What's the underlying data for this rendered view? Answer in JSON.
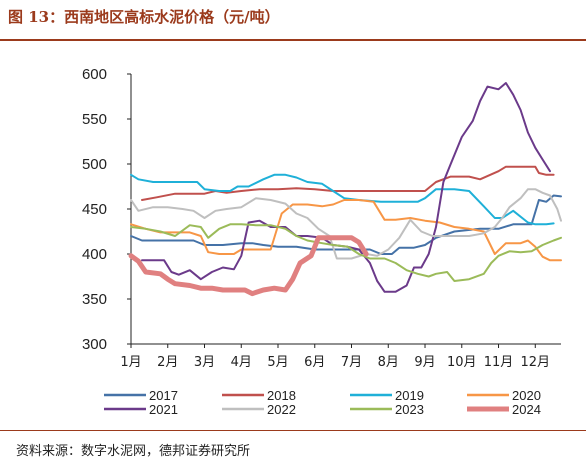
{
  "figure": {
    "title": "图 13：西南地区高标水泥价格（元/吨）",
    "source": "资料来源：数字水泥网，德邦证券研究所"
  },
  "chart_data": {
    "type": "line",
    "title": "",
    "xlabel": "",
    "ylabel": "",
    "ylim": [
      300,
      600
    ],
    "yticks": [
      300,
      350,
      400,
      450,
      500,
      550,
      600
    ],
    "categories": [
      "1月",
      "2月",
      "3月",
      "4月",
      "5月",
      "6月",
      "7月",
      "8月",
      "9月",
      "10月",
      "11月",
      "12月"
    ],
    "x_range": [
      1,
      12.7
    ],
    "grid": false,
    "legend_position": "bottom",
    "series": [
      {
        "name": "2017",
        "color": "#4572a7",
        "width": 2,
        "points": [
          [
            1,
            420
          ],
          [
            1.3,
            415
          ],
          [
            2.0,
            415
          ],
          [
            2.7,
            415
          ],
          [
            3.0,
            410
          ],
          [
            3.5,
            410
          ],
          [
            4.0,
            412
          ],
          [
            4.3,
            412
          ],
          [
            4.6,
            410
          ],
          [
            5.0,
            408
          ],
          [
            5.5,
            408
          ],
          [
            6.0,
            405
          ],
          [
            6.5,
            405
          ],
          [
            7.0,
            405
          ],
          [
            7.5,
            405
          ],
          [
            7.8,
            400
          ],
          [
            8.1,
            400
          ],
          [
            8.3,
            407
          ],
          [
            8.7,
            407
          ],
          [
            9.0,
            410
          ],
          [
            9.3,
            418
          ],
          [
            9.8,
            425
          ],
          [
            10.5,
            428
          ],
          [
            11.0,
            428
          ],
          [
            11.4,
            433
          ],
          [
            11.9,
            433
          ],
          [
            12.1,
            460
          ],
          [
            12.3,
            458
          ],
          [
            12.5,
            465
          ],
          [
            12.7,
            464
          ]
        ]
      },
      {
        "name": "2018",
        "color": "#c0504d",
        "width": 2,
        "points": [
          [
            1.3,
            460
          ],
          [
            1.7,
            463
          ],
          [
            2.2,
            467
          ],
          [
            2.7,
            467
          ],
          [
            3.0,
            467
          ],
          [
            3.3,
            470
          ],
          [
            3.6,
            468
          ],
          [
            4.0,
            470
          ],
          [
            4.5,
            472
          ],
          [
            5.0,
            472
          ],
          [
            5.5,
            473
          ],
          [
            6.0,
            472
          ],
          [
            6.5,
            470
          ],
          [
            7.0,
            470
          ],
          [
            7.5,
            470
          ],
          [
            8.0,
            470
          ],
          [
            8.5,
            470
          ],
          [
            9.0,
            470
          ],
          [
            9.3,
            480
          ],
          [
            9.7,
            486
          ],
          [
            10.2,
            486
          ],
          [
            10.5,
            483
          ],
          [
            11.0,
            492
          ],
          [
            11.2,
            497
          ],
          [
            11.6,
            497
          ],
          [
            12.0,
            497
          ],
          [
            12.1,
            490
          ],
          [
            12.3,
            488
          ],
          [
            12.5,
            488
          ]
        ]
      },
      {
        "name": "2019",
        "color": "#1fb0d8",
        "width": 2,
        "points": [
          [
            1,
            488
          ],
          [
            1.2,
            483
          ],
          [
            1.6,
            480
          ],
          [
            2.0,
            480
          ],
          [
            2.4,
            480
          ],
          [
            2.8,
            480
          ],
          [
            3.0,
            472
          ],
          [
            3.4,
            470
          ],
          [
            3.7,
            470
          ],
          [
            3.9,
            475
          ],
          [
            4.2,
            475
          ],
          [
            4.6,
            483
          ],
          [
            4.9,
            488
          ],
          [
            5.2,
            488
          ],
          [
            5.5,
            485
          ],
          [
            5.8,
            480
          ],
          [
            6.2,
            478
          ],
          [
            6.5,
            470
          ],
          [
            6.8,
            462
          ],
          [
            7.2,
            460
          ],
          [
            7.8,
            458
          ],
          [
            8.3,
            458
          ],
          [
            8.8,
            458
          ],
          [
            9.0,
            462
          ],
          [
            9.3,
            472
          ],
          [
            9.8,
            472
          ],
          [
            10.2,
            470
          ],
          [
            10.6,
            453
          ],
          [
            10.9,
            440
          ],
          [
            11.1,
            440
          ],
          [
            11.4,
            448
          ],
          [
            11.8,
            435
          ],
          [
            12.0,
            433
          ],
          [
            12.3,
            433
          ],
          [
            12.5,
            434
          ]
        ]
      },
      {
        "name": "2020",
        "color": "#f79646",
        "width": 2,
        "points": [
          [
            1,
            433
          ],
          [
            1.4,
            428
          ],
          [
            1.8,
            424
          ],
          [
            2.2,
            424
          ],
          [
            2.6,
            424
          ],
          [
            2.9,
            420
          ],
          [
            3.1,
            402
          ],
          [
            3.4,
            400
          ],
          [
            3.8,
            400
          ],
          [
            4.0,
            405
          ],
          [
            4.4,
            405
          ],
          [
            4.8,
            405
          ],
          [
            5.1,
            445
          ],
          [
            5.4,
            455
          ],
          [
            5.8,
            455
          ],
          [
            6.2,
            453
          ],
          [
            6.5,
            455
          ],
          [
            6.8,
            460
          ],
          [
            7.2,
            460
          ],
          [
            7.6,
            458
          ],
          [
            7.9,
            438
          ],
          [
            8.2,
            438
          ],
          [
            8.6,
            440
          ],
          [
            9.0,
            437
          ],
          [
            9.4,
            435
          ],
          [
            9.8,
            430
          ],
          [
            10.2,
            428
          ],
          [
            10.6,
            425
          ],
          [
            10.9,
            400
          ],
          [
            11.2,
            412
          ],
          [
            11.6,
            412
          ],
          [
            11.8,
            415
          ],
          [
            12.0,
            408
          ],
          [
            12.2,
            397
          ],
          [
            12.4,
            393
          ],
          [
            12.7,
            393
          ]
        ]
      },
      {
        "name": "2021",
        "color": "#6b3a8a",
        "width": 2,
        "points": [
          [
            1.3,
            393
          ],
          [
            1.6,
            393
          ],
          [
            1.9,
            393
          ],
          [
            2.1,
            380
          ],
          [
            2.3,
            377
          ],
          [
            2.6,
            382
          ],
          [
            2.9,
            372
          ],
          [
            3.2,
            380
          ],
          [
            3.5,
            385
          ],
          [
            3.8,
            383
          ],
          [
            4.0,
            398
          ],
          [
            4.2,
            435
          ],
          [
            4.5,
            437
          ],
          [
            4.8,
            430
          ],
          [
            5.2,
            430
          ],
          [
            5.5,
            420
          ],
          [
            5.8,
            420
          ],
          [
            6.2,
            418
          ],
          [
            6.5,
            410
          ],
          [
            6.9,
            408
          ],
          [
            7.2,
            405
          ],
          [
            7.5,
            390
          ],
          [
            7.7,
            370
          ],
          [
            7.9,
            358
          ],
          [
            8.2,
            358
          ],
          [
            8.5,
            365
          ],
          [
            8.7,
            385
          ],
          [
            8.9,
            385
          ],
          [
            9.1,
            400
          ],
          [
            9.3,
            430
          ],
          [
            9.5,
            480
          ],
          [
            9.7,
            500
          ],
          [
            10.0,
            530
          ],
          [
            10.3,
            548
          ],
          [
            10.5,
            570
          ],
          [
            10.7,
            586
          ],
          [
            11.0,
            583
          ],
          [
            11.2,
            590
          ],
          [
            11.4,
            577
          ],
          [
            11.6,
            560
          ],
          [
            11.8,
            535
          ],
          [
            12.0,
            518
          ],
          [
            12.2,
            505
          ],
          [
            12.4,
            492
          ]
        ]
      },
      {
        "name": "2022",
        "color": "#bfbfbf",
        "width": 2,
        "points": [
          [
            1,
            460
          ],
          [
            1.2,
            448
          ],
          [
            1.6,
            452
          ],
          [
            2.0,
            452
          ],
          [
            2.4,
            450
          ],
          [
            2.7,
            448
          ],
          [
            3.0,
            440
          ],
          [
            3.3,
            448
          ],
          [
            3.6,
            450
          ],
          [
            4.0,
            452
          ],
          [
            4.4,
            462
          ],
          [
            4.8,
            460
          ],
          [
            5.2,
            456
          ],
          [
            5.5,
            445
          ],
          [
            5.8,
            440
          ],
          [
            6.1,
            428
          ],
          [
            6.4,
            420
          ],
          [
            6.6,
            395
          ],
          [
            7.0,
            395
          ],
          [
            7.4,
            400
          ],
          [
            7.7,
            398
          ],
          [
            8.0,
            405
          ],
          [
            8.3,
            418
          ],
          [
            8.6,
            438
          ],
          [
            8.9,
            425
          ],
          [
            9.2,
            420
          ],
          [
            9.5,
            420
          ],
          [
            9.8,
            420
          ],
          [
            10.2,
            420
          ],
          [
            10.6,
            423
          ],
          [
            10.9,
            430
          ],
          [
            11.1,
            440
          ],
          [
            11.3,
            452
          ],
          [
            11.6,
            462
          ],
          [
            11.8,
            472
          ],
          [
            12.0,
            472
          ],
          [
            12.2,
            468
          ],
          [
            12.4,
            465
          ],
          [
            12.6,
            450
          ],
          [
            12.7,
            437
          ]
        ]
      },
      {
        "name": "2023",
        "color": "#9bbb59",
        "width": 2,
        "points": [
          [
            1,
            430
          ],
          [
            1.4,
            428
          ],
          [
            1.8,
            425
          ],
          [
            2.2,
            420
          ],
          [
            2.6,
            432
          ],
          [
            2.9,
            430
          ],
          [
            3.1,
            418
          ],
          [
            3.4,
            428
          ],
          [
            3.7,
            433
          ],
          [
            4.0,
            433
          ],
          [
            4.4,
            432
          ],
          [
            4.8,
            432
          ],
          [
            5.2,
            428
          ],
          [
            5.5,
            420
          ],
          [
            5.8,
            415
          ],
          [
            6.2,
            412
          ],
          [
            6.5,
            410
          ],
          [
            6.9,
            408
          ],
          [
            7.2,
            400
          ],
          [
            7.5,
            395
          ],
          [
            7.9,
            395
          ],
          [
            8.2,
            390
          ],
          [
            8.5,
            382
          ],
          [
            8.8,
            378
          ],
          [
            9.1,
            375
          ],
          [
            9.3,
            378
          ],
          [
            9.6,
            380
          ],
          [
            9.8,
            370
          ],
          [
            10.2,
            372
          ],
          [
            10.6,
            378
          ],
          [
            10.8,
            390
          ],
          [
            11.0,
            398
          ],
          [
            11.3,
            403
          ],
          [
            11.6,
            402
          ],
          [
            11.9,
            403
          ],
          [
            12.2,
            410
          ],
          [
            12.5,
            415
          ],
          [
            12.7,
            418
          ]
        ]
      },
      {
        "name": "2024",
        "color": "#e08080",
        "width": 5,
        "points": [
          [
            1,
            398
          ],
          [
            1.2,
            392
          ],
          [
            1.4,
            380
          ],
          [
            1.8,
            378
          ],
          [
            2.0,
            372
          ],
          [
            2.2,
            367
          ],
          [
            2.6,
            365
          ],
          [
            2.9,
            362
          ],
          [
            3.2,
            362
          ],
          [
            3.5,
            360
          ],
          [
            3.8,
            360
          ],
          [
            4.1,
            360
          ],
          [
            4.3,
            356
          ],
          [
            4.6,
            360
          ],
          [
            4.9,
            362
          ],
          [
            5.2,
            360
          ],
          [
            5.4,
            372
          ],
          [
            5.6,
            390
          ],
          [
            5.9,
            398
          ],
          [
            6.1,
            418
          ],
          [
            6.4,
            418
          ],
          [
            6.7,
            418
          ],
          [
            7.0,
            418
          ],
          [
            7.2,
            413
          ],
          [
            7.4,
            400
          ]
        ]
      }
    ]
  }
}
